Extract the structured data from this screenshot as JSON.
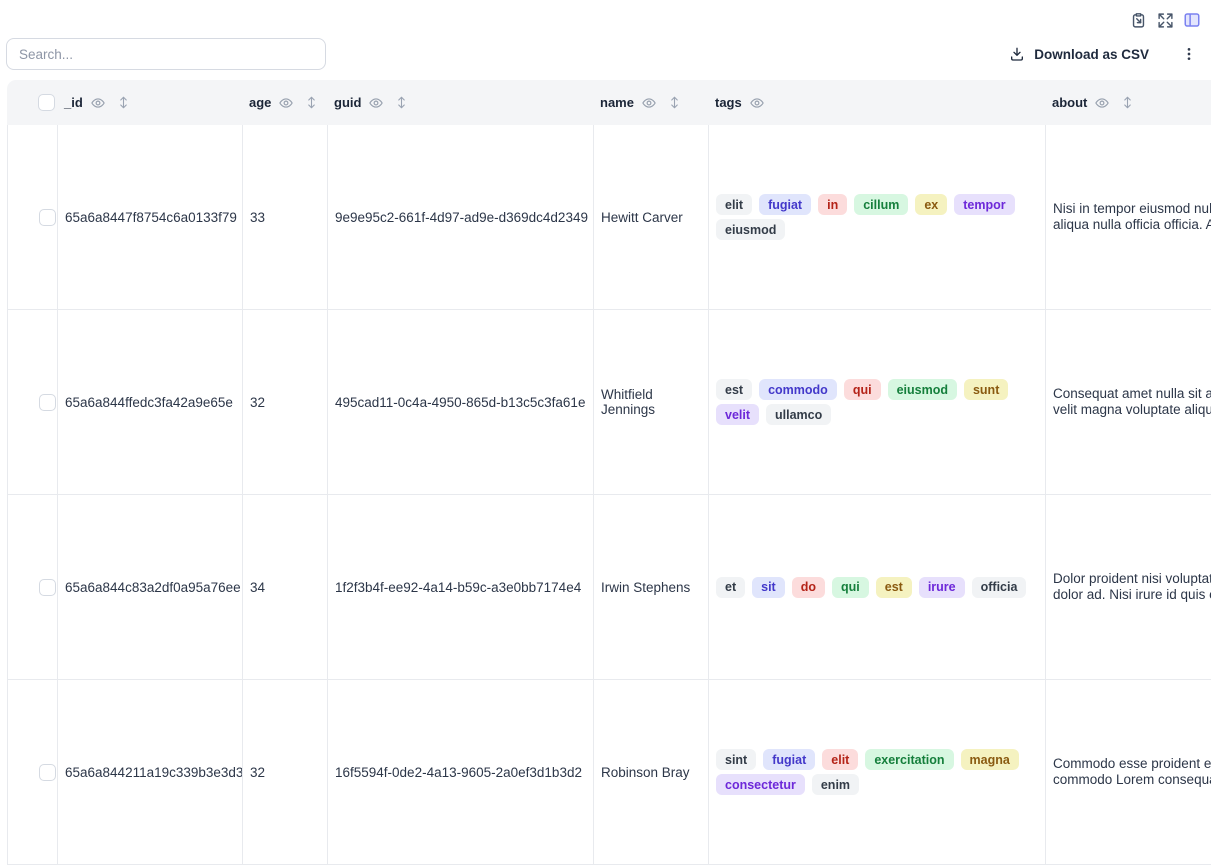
{
  "topbar": {
    "icons": [
      "clipboard-export-icon",
      "fullscreen-icon",
      "table-layout-icon"
    ],
    "accent_color": "#7b82f0",
    "icon_color": "#475569"
  },
  "toolbar": {
    "search_placeholder": "Search...",
    "download_label": "Download as CSV",
    "menu_icon": "kebab-menu-icon"
  },
  "tag_palette": [
    {
      "bg": "#f1f3f5",
      "fg": "#333c48"
    },
    {
      "bg": "#e0e5fc",
      "fg": "#4338ca"
    },
    {
      "bg": "#fcdcdc",
      "fg": "#b42318"
    },
    {
      "bg": "#d7f7e1",
      "fg": "#157f3c"
    },
    {
      "bg": "#f5f2c0",
      "fg": "#8a5a10"
    },
    {
      "bg": "#e7e0fc",
      "fg": "#6d28d9"
    }
  ],
  "table": {
    "columns": [
      {
        "key": "select",
        "label": "",
        "eye": false,
        "sortable": false
      },
      {
        "key": "_id",
        "label": "_id",
        "eye": true,
        "sortable": true
      },
      {
        "key": "age",
        "label": "age",
        "eye": true,
        "sortable": true
      },
      {
        "key": "guid",
        "label": "guid",
        "eye": true,
        "sortable": true
      },
      {
        "key": "name",
        "label": "name",
        "eye": true,
        "sortable": true
      },
      {
        "key": "tags",
        "label": "tags",
        "eye": true,
        "sortable": false
      },
      {
        "key": "about",
        "label": "about",
        "eye": true,
        "sortable": true
      }
    ],
    "rows": [
      {
        "_id": "65a6a8447f8754c6a0133f79",
        "age": "33",
        "guid": "9e9e95c2-661f-4d97-ad9e-d369dc4d2349",
        "name": "Hewitt Carver",
        "tags": [
          "elit",
          "fugiat",
          "in",
          "cillum",
          "ex",
          "tempor",
          "eiusmod"
        ],
        "about_lines": [
          "Nisi in tempor eiusmod nulla",
          "aliqua nulla officia officia. Ad"
        ]
      },
      {
        "_id": "65a6a844ffedc3fa42a9e65e",
        "age": "32",
        "guid": "495cad11-0c4a-4950-865d-b13c5c3fa61e",
        "name": "Whitfield Jennings",
        "tags": [
          "est",
          "commodo",
          "qui",
          "eiusmod",
          "sunt",
          "velit",
          "ullamco"
        ],
        "about_lines": [
          "Consequat amet nulla sit au",
          "velit magna voluptate aliqua"
        ]
      },
      {
        "_id": "65a6a844c83a2df0a95a76ee",
        "age": "34",
        "guid": "1f2f3b4f-ee92-4a14-b59c-a3e0bb7174e4",
        "name": "Irwin Stephens",
        "tags": [
          "et",
          "sit",
          "do",
          "qui",
          "est",
          "irure",
          "officia"
        ],
        "about_lines": [
          "Dolor proident nisi voluptate",
          "dolor ad. Nisi irure id quis ex"
        ]
      },
      {
        "_id": "65a6a844211a19c339b3e3d3",
        "age": "32",
        "guid": "16f5594f-0de2-4a13-9605-2a0ef3d1b3d2",
        "name": "Robinson Bray",
        "tags": [
          "sint",
          "fugiat",
          "elit",
          "exercitation",
          "magna",
          "consectetur",
          "enim"
        ],
        "about_lines": [
          "Commodo esse proident ex",
          "commodo Lorem consequat"
        ]
      }
    ]
  }
}
